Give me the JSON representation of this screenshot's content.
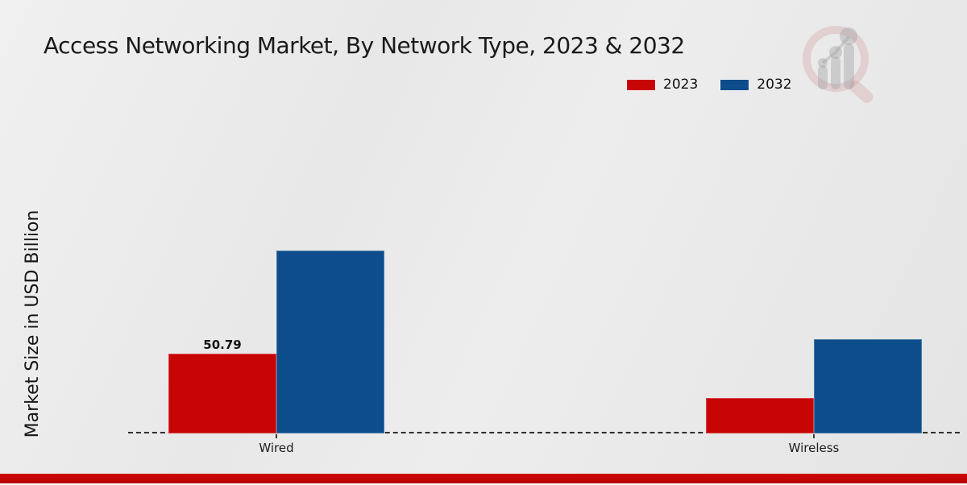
{
  "title": "Access Networking Market, By Network Type, 2023 & 2032",
  "ylabel_text": "Market Size in USD Billion",
  "legend": {
    "items": [
      {
        "label": "2023",
        "color": "#c80505"
      },
      {
        "label": "2032",
        "color": "#0e4d8c"
      }
    ]
  },
  "watermark_icon": "magnifier-bar-chart-logo",
  "colors": {
    "series_2023": "#c80505",
    "series_2032": "#0e4d8c",
    "baseline": "#2e2e2e",
    "bottom_strip": "#c10404",
    "background": "#e9e9e9",
    "title_text": "#1a1a1a"
  },
  "chart_data": {
    "type": "bar",
    "title": "Access Networking Market, By Network Type, 2023 & 2032",
    "xlabel": "",
    "ylabel": "Market Size in USD Billion",
    "categories": [
      "Wired",
      "Wireless"
    ],
    "series": [
      {
        "name": "2023",
        "color": "#c80505",
        "values": [
          50.79,
          22.6
        ]
      },
      {
        "name": "2032",
        "color": "#0e4d8c",
        "values": [
          116.5,
          60.0
        ]
      }
    ],
    "ylim": [
      0,
      130
    ],
    "grid": false,
    "legend_position": "top-right",
    "baseline_style": "dashed",
    "value_labels": [
      {
        "category": "Wired",
        "series": "2023",
        "text": "50.79"
      }
    ]
  }
}
